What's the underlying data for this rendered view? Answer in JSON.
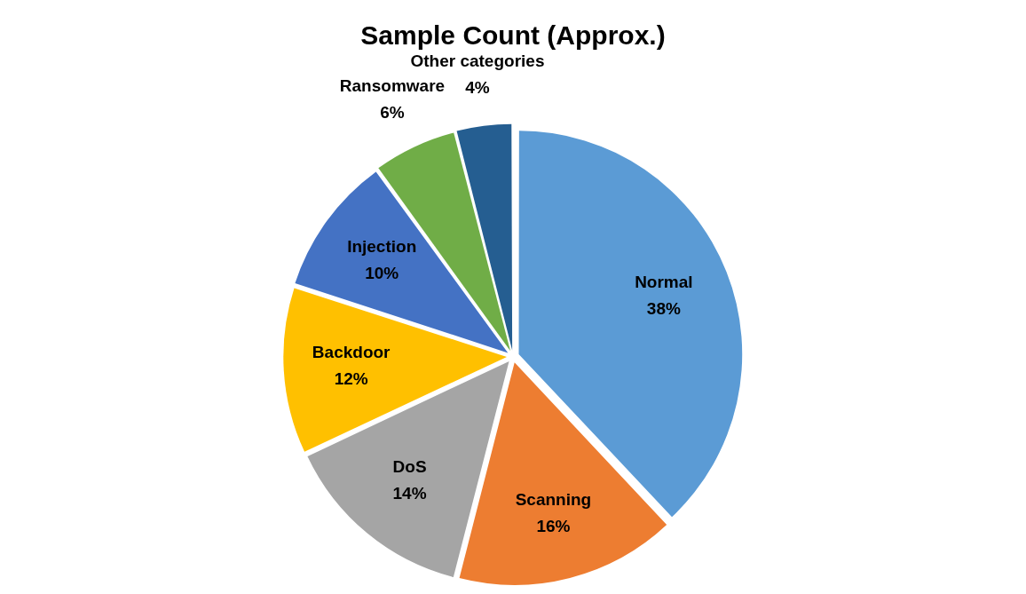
{
  "chart_data": {
    "type": "pie",
    "title": "Sample Count (Approx.)",
    "categories": [
      "Normal",
      "Scanning",
      "DoS",
      "Backdoor",
      "Injection",
      "Ransomware",
      "Other categories"
    ],
    "values": [
      38,
      16,
      14,
      12,
      10,
      6,
      4
    ],
    "value_labels": [
      "38%",
      "16%",
      "14%",
      "12%",
      "10%",
      "6%",
      "4%"
    ],
    "colors": [
      "#5b9bd5",
      "#ed7d31",
      "#a5a5a5",
      "#ffc000",
      "#4472c4",
      "#70ad47",
      "#255e91"
    ],
    "legend": false
  }
}
